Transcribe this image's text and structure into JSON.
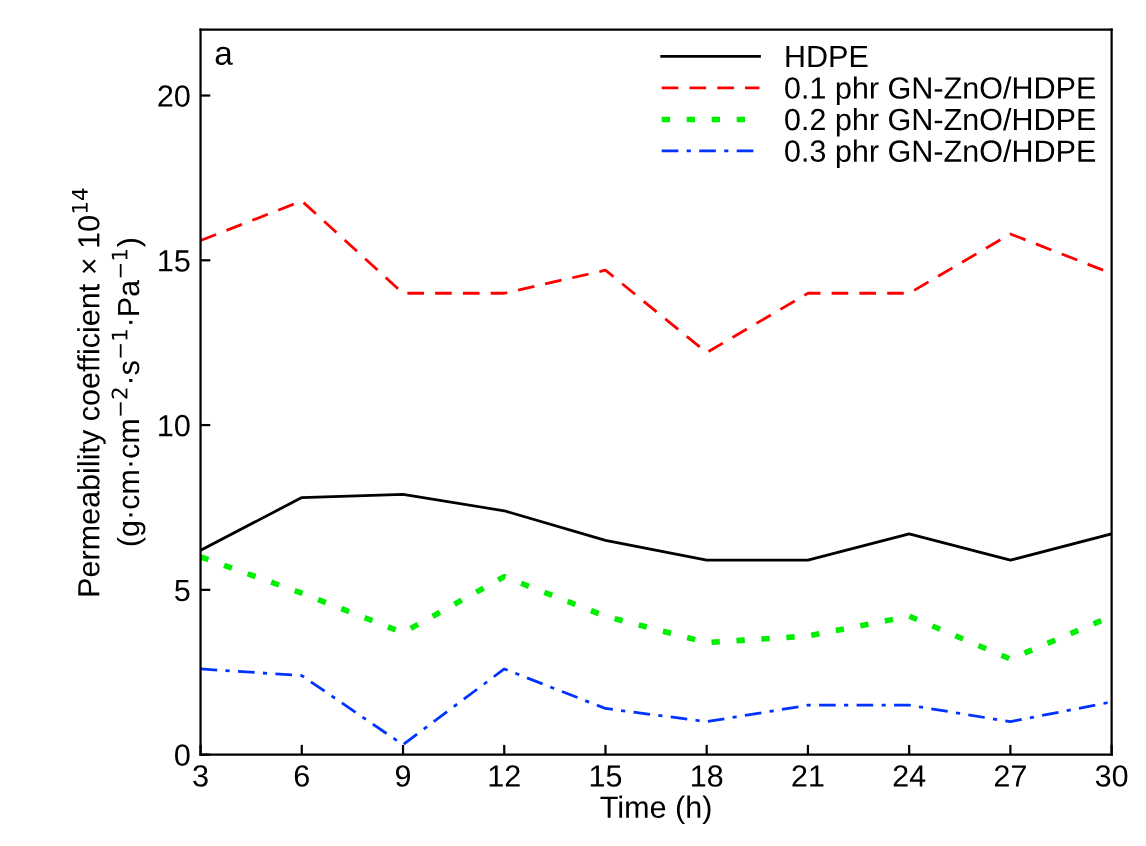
{
  "chart_data": {
    "type": "line",
    "xlabel": "Time (h)",
    "ylabel": "Permeability coefficient × 10$^{14}$\n(g·cm·cm$^{−2}$·s$^{−1}$·Pa$^{−1}$)",
    "annotations": [
      "a"
    ],
    "x": [
      3,
      6,
      9,
      12,
      15,
      18,
      21,
      24,
      27,
      30
    ],
    "series": [
      {
        "name": "HDPE",
        "color": "#000000",
        "line_style": "solid",
        "values": [
          6.2,
          7.8,
          7.9,
          7.4,
          6.5,
          5.9,
          5.9,
          6.7,
          5.9,
          6.7
        ]
      },
      {
        "name": "0.1 phr GN-ZnO/HDPE",
        "color": "#ff0000",
        "line_style": "dashed",
        "values": [
          15.6,
          16.8,
          14.0,
          14.0,
          14.7,
          12.2,
          14.0,
          14.0,
          15.8,
          14.6
        ]
      },
      {
        "name": "0.2 phr GN-ZnO/HDPE",
        "color": "#00ee00",
        "line_style": "dotted",
        "values": [
          6.0,
          4.9,
          3.7,
          5.4,
          4.2,
          3.4,
          3.6,
          4.2,
          2.9,
          4.2
        ]
      },
      {
        "name": "0.3 phr GN-ZnO/HDPE",
        "color": "#0033ff",
        "line_style": "dashdot",
        "values": [
          2.6,
          2.4,
          0.3,
          2.6,
          1.4,
          1.0,
          1.5,
          1.5,
          1.0,
          1.6
        ]
      }
    ],
    "xlim": [
      3,
      30
    ],
    "ylim": [
      0,
      22
    ],
    "xticks": [
      3,
      6,
      9,
      12,
      15,
      18,
      21,
      24,
      27,
      30
    ],
    "yticks": [
      0,
      5,
      10,
      15,
      20
    ],
    "grid": false,
    "legend": "top right"
  }
}
